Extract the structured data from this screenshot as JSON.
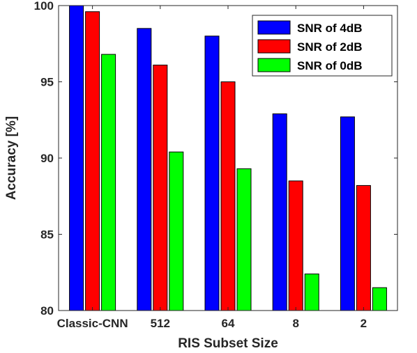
{
  "chart_data": {
    "type": "bar",
    "title": "",
    "xlabel": "RIS Subset Size",
    "ylabel": "Accuracy [%]",
    "ylim": [
      80,
      100
    ],
    "yticks": [
      80,
      85,
      90,
      95,
      100
    ],
    "categories": [
      "Classic-CNN",
      "512",
      "64",
      "8",
      "2"
    ],
    "series": [
      {
        "name": "SNR of 4dB",
        "color": "#0000ff",
        "values": [
          100.0,
          98.5,
          98.0,
          92.9,
          92.7
        ]
      },
      {
        "name": "SNR of 2dB",
        "color": "#ff0000",
        "values": [
          99.6,
          96.1,
          95.0,
          88.5,
          88.2
        ]
      },
      {
        "name": "SNR of 0dB",
        "color": "#00ff00",
        "values": [
          96.8,
          90.4,
          89.3,
          82.4,
          81.5
        ]
      }
    ],
    "legend_position": "top-right",
    "grid": false,
    "box": true
  }
}
